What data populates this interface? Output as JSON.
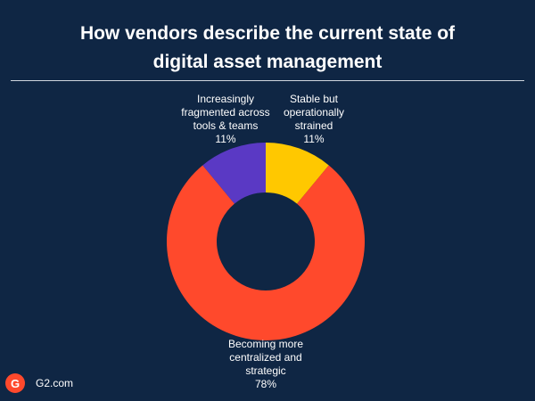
{
  "title_lines": [
    "How vendors describe the current state of",
    "digital asset management"
  ],
  "brand": {
    "logo_text": "G",
    "name": "G2.com",
    "color": "#ff492c"
  },
  "chart_data": {
    "type": "pie",
    "variant": "donut",
    "title": "How vendors describe the current state of digital asset management",
    "slices": [
      {
        "label_lines": [
          "Stable but",
          "operationally",
          "strained"
        ],
        "value": 11,
        "display": "11%",
        "color": "#ffc800"
      },
      {
        "label_lines": [
          "Becoming more",
          "centralized and",
          "strategic"
        ],
        "value": 78,
        "display": "78%",
        "color": "#ff492c"
      },
      {
        "label_lines": [
          "Increasingly",
          "fragmented across",
          "tools & teams"
        ],
        "value": 11,
        "display": "11%",
        "color": "#5a39c4"
      }
    ],
    "legend": "none"
  }
}
